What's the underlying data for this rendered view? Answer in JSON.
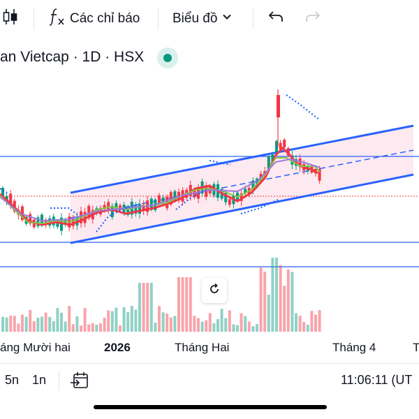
{
  "toolbar": {
    "indicators_label": "Các chỉ báo",
    "chart_type_label": "Biểu đồ"
  },
  "legend": {
    "symbol_title": "an Vietcap · 1D · HSX",
    "status_color": "#089981"
  },
  "time_axis": {
    "labels": [
      "áng Mười hai",
      "2026",
      "Tháng Hai",
      "Tháng 4",
      "T"
    ]
  },
  "bottom_bar": {
    "ranges": [
      "5n",
      "1n"
    ],
    "clock": "11:06:11 (UT"
  },
  "colors": {
    "up": "#089981",
    "down": "#f23645",
    "channel_line": "#2962ff",
    "horizontal_line": "#2962ff",
    "channel_fill": "#fce4ec"
  },
  "icons": {
    "bars_style": "candlestick-icon",
    "indicators": "function-fx-icon",
    "chart_type_chevron": "chevron-down-icon",
    "undo": "undo-icon",
    "redo": "redo-icon",
    "reset": "reset-icon",
    "go_to_date": "calendar-go-icon"
  }
}
